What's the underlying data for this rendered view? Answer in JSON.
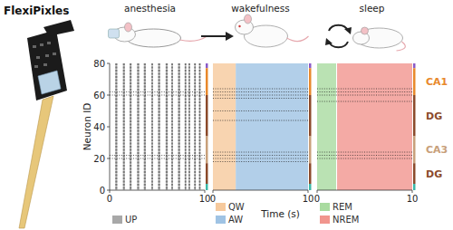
{
  "probe": {
    "label": "FlexiPixles"
  },
  "regions": [
    {
      "label": null,
      "from": 77,
      "to": 80,
      "color": "#8a5ac8"
    },
    {
      "label": "CA1",
      "from": 60,
      "to": 77,
      "color": "#e8892c"
    },
    {
      "label": "DG",
      "from": 34,
      "to": 60,
      "color": "#8b4a2b"
    },
    {
      "label": "CA3",
      "from": 17,
      "to": 34,
      "color": "#c8a07a"
    },
    {
      "label": "DG",
      "from": 4,
      "to": 17,
      "color": "#8b4a2b"
    },
    {
      "label": null,
      "from": 0,
      "to": 4,
      "color": "#3cb8a8"
    }
  ],
  "chart_data": [
    {
      "type": "raster",
      "title": "anesthesia",
      "y_label": "Neuron ID",
      "xlim": [
        0,
        10
      ],
      "xticks": [
        0,
        10
      ],
      "ylim": [
        0,
        80
      ],
      "yticks": [
        0,
        20,
        40,
        60,
        80
      ],
      "legend": "bottom-left",
      "states": [
        {
          "name": "UP",
          "color": "#a8a8a8",
          "intervals": [
            [
              0.6,
              0.8
            ],
            [
              1.4,
              1.6
            ],
            [
              2.1,
              2.3
            ],
            [
              2.9,
              3.1
            ],
            [
              3.6,
              3.8
            ],
            [
              4.4,
              4.55
            ],
            [
              5.1,
              5.3
            ],
            [
              5.9,
              6.1
            ],
            [
              6.5,
              6.65
            ],
            [
              7.2,
              7.4
            ],
            [
              7.9,
              8.05
            ],
            [
              8.3,
              8.45
            ],
            [
              8.9,
              9.05
            ],
            [
              9.4,
              9.55
            ]
          ]
        }
      ],
      "active_neurons": [
        62,
        60,
        22,
        20
      ]
    },
    {
      "type": "raster",
      "title": "wakefulness",
      "x_label": "Time (s)",
      "xlim": [
        0,
        10
      ],
      "xticks": [
        0,
        10
      ],
      "ylim": [
        0,
        80
      ],
      "tick_labels": "x",
      "legend": "bottom-left",
      "states": [
        {
          "name": "QW",
          "color": "#f6c99c",
          "intervals": [
            [
              0,
              2.4
            ]
          ]
        },
        {
          "name": "AW",
          "color": "#9fc3e4",
          "intervals": [
            [
              2.4,
              10
            ]
          ]
        }
      ],
      "active_neurons": [
        64,
        62,
        60,
        58,
        50,
        44,
        24,
        22,
        20,
        18
      ]
    },
    {
      "type": "raster",
      "title": "sleep",
      "xlim": [
        0,
        10
      ],
      "xticks": [
        0,
        10
      ],
      "ylim": [
        0,
        80
      ],
      "tick_labels": "x",
      "legend": "bottom-left",
      "states": [
        {
          "name": "REM",
          "color": "#a9dba0",
          "intervals": [
            [
              0,
              2.0
            ]
          ]
        },
        {
          "name": "NREM",
          "color": "#f1958e",
          "intervals": [
            [
              2.1,
              10
            ]
          ]
        }
      ],
      "active_neurons": [
        64,
        62,
        60,
        56,
        24,
        22,
        20
      ]
    }
  ]
}
